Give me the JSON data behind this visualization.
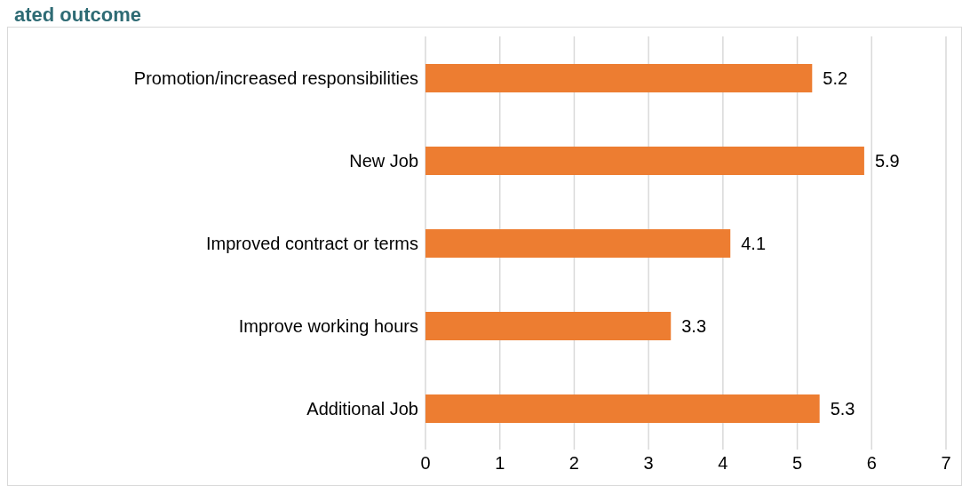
{
  "chart_data": {
    "type": "bar",
    "orientation": "horizontal",
    "title": "ated outcome",
    "categories": [
      "Promotion/increased responsibilities",
      "New Job",
      "Improved contract or terms",
      "Improve working hours",
      "Additional Job"
    ],
    "values": [
      5.2,
      5.9,
      4.1,
      3.3,
      5.3
    ],
    "color": "#ed7d31",
    "xlim": [
      0,
      7
    ],
    "xticks": [
      0,
      1,
      2,
      3,
      4,
      5,
      6,
      7
    ],
    "grid": "x",
    "data_labels": true
  }
}
